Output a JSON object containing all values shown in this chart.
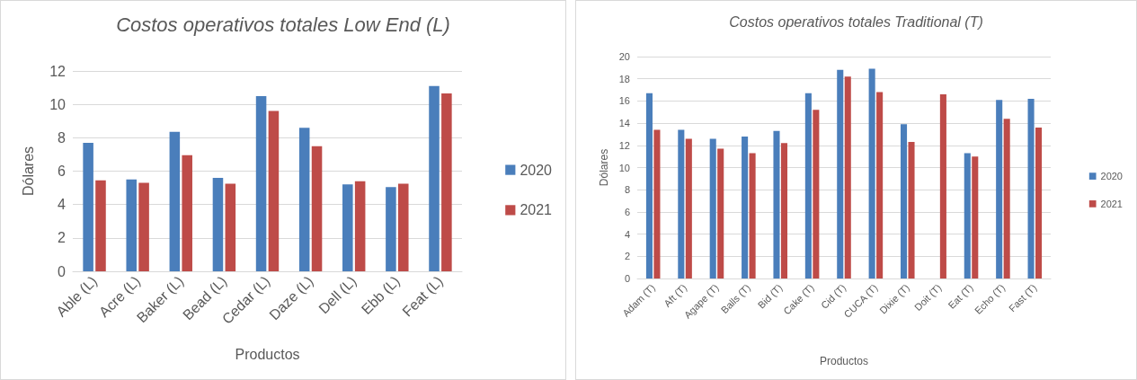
{
  "chart_data": [
    {
      "type": "bar",
      "title": "Costos operativos totales Low End (L)",
      "xlabel": "Productos",
      "ylabel": "Dólares",
      "categories": [
        "Able (L)",
        "Acre (L)",
        "Baker (L)",
        "Bead (L)",
        "Cedar (L)",
        "Daze (L)",
        "Dell (L)",
        "Ebb (L)",
        "Feat (L)"
      ],
      "series": [
        {
          "name": "2020",
          "color": "#4a7ebb",
          "values": [
            7.7,
            5.5,
            8.35,
            5.6,
            10.5,
            8.6,
            5.2,
            5.05,
            11.1
          ]
        },
        {
          "name": "2021",
          "color": "#be4b48",
          "values": [
            5.45,
            5.3,
            6.95,
            5.25,
            9.6,
            7.5,
            5.4,
            5.25,
            10.65
          ]
        }
      ],
      "ylim": [
        0,
        12
      ],
      "yticks": [
        0,
        2,
        4,
        6,
        8,
        10,
        12
      ],
      "grid": "y",
      "legend": "right"
    },
    {
      "type": "bar",
      "title": "Costos operativos totales Traditional (T)",
      "xlabel": "Productos",
      "ylabel": "Dólares",
      "categories": [
        "Adam (T)",
        "Aft (T)",
        "Agape (T)",
        "Balls (T)",
        "Bid (T)",
        "Cake (T)",
        "Cid (T)",
        "CUCA (T)",
        "Dixie (T)",
        "Doit (T)",
        "Eat (T)",
        "Echo (T)",
        "Fast (T)"
      ],
      "series": [
        {
          "name": "2020",
          "color": "#4a7ebb",
          "values": [
            16.7,
            13.4,
            12.6,
            12.8,
            13.3,
            16.7,
            18.8,
            18.9,
            13.9,
            null,
            11.3,
            16.1,
            16.2
          ]
        },
        {
          "name": "2021",
          "color": "#be4b48",
          "values": [
            13.4,
            12.6,
            11.7,
            11.3,
            12.2,
            15.2,
            18.2,
            16.8,
            12.3,
            16.6,
            11.0,
            14.4,
            13.6
          ]
        }
      ],
      "ylim": [
        0,
        20
      ],
      "yticks": [
        0,
        2,
        4,
        6,
        8,
        10,
        12,
        14,
        16,
        18,
        20
      ],
      "grid": "y",
      "legend": "right"
    }
  ]
}
